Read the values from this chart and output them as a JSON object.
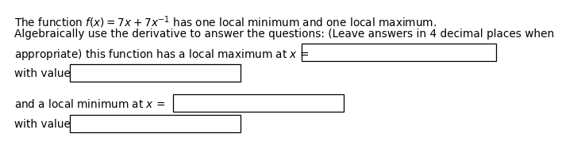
{
  "line1": "The function $f(x) = 7x + 7x^{-1}$ has one local minimum and one local maximum.",
  "line2": "Algebraically use the derivative to answer the questions: (Leave answers in 4 decimal places when",
  "line3_prefix": "appropriate) this function has a local maximum at $x$ =",
  "with_value": "with value",
  "line4_prefix": "and a local minimum at $x$ =",
  "with_value2": "with value",
  "bg_color": "#ffffff",
  "text_color": "#000000",
  "box_color": "#000000",
  "font_size": 9.8
}
